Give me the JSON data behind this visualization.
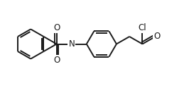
{
  "bg_color": "#ffffff",
  "line_color": "#1a1a1a",
  "line_width": 1.4,
  "font_size": 8.5,
  "xlim": [
    -2.5,
    2.3
  ],
  "ylim": [
    -1.05,
    1.05
  ]
}
